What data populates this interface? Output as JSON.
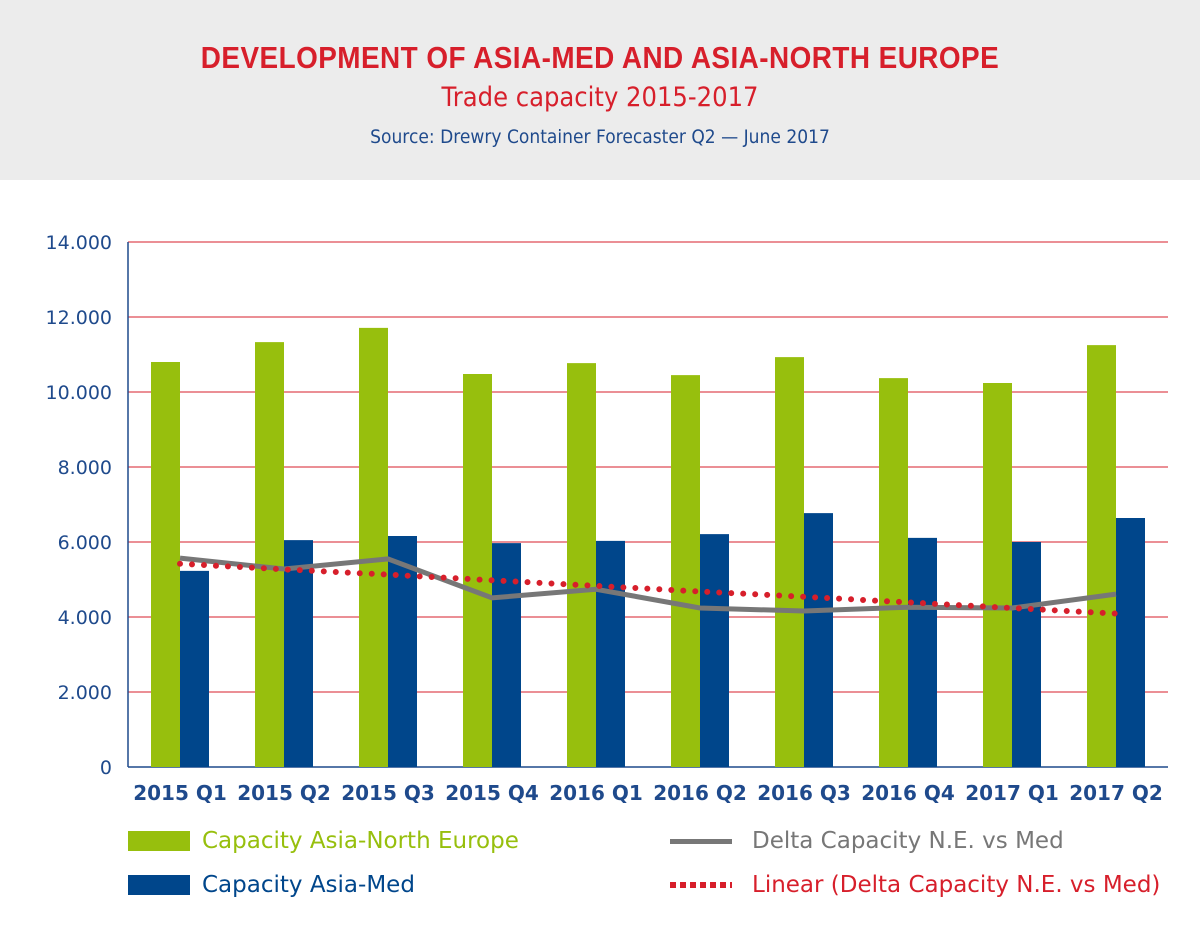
{
  "header": {
    "title": "DEVELOPMENT OF ASIA-MED AND ASIA-NORTH EUROPE",
    "subtitle": "Trade capacity 2015-2017",
    "source": "Source: Drewry Container Forecaster Q2 — June 2017"
  },
  "chart_data": {
    "type": "bar",
    "title": "DEVELOPMENT OF ASIA-MED AND ASIA-NORTH EUROPE",
    "subtitle": "Trade capacity 2015-2017",
    "categories": [
      "2015 Q1",
      "2015 Q2",
      "2015 Q3",
      "2015 Q4",
      "2016 Q1",
      "2016 Q2",
      "2016 Q3",
      "2016 Q4",
      "2017 Q1",
      "2017 Q2"
    ],
    "ylim": [
      0,
      14000
    ],
    "yticks": [
      "0",
      "2.000",
      "4.000",
      "6.000",
      "8.000",
      "10.000",
      "12.000",
      "14.000"
    ],
    "grid": true,
    "legend_position": "bottom",
    "series": [
      {
        "name": "Capacity Asia-North Europe",
        "type": "bar",
        "color": "#97bf0d",
        "values": [
          10800,
          11330,
          11710,
          10480,
          10770,
          10450,
          10930,
          10370,
          10240,
          11250
        ]
      },
      {
        "name": "Capacity Asia-Med",
        "type": "bar",
        "color": "#00468b",
        "values": [
          5230,
          6050,
          6160,
          5970,
          6030,
          6210,
          6770,
          6110,
          6000,
          6640
        ]
      },
      {
        "name": "Delta Capacity N.E. vs Med",
        "type": "line",
        "color": "#777777",
        "values": [
          5570,
          5280,
          5550,
          4510,
          4740,
          4240,
          4160,
          4260,
          4240,
          4610
        ]
      },
      {
        "name": "Linear (Delta Capacity N.E. vs Med)",
        "type": "line",
        "style": "dotted",
        "color": "#d71f2b",
        "values": [
          5420,
          5270,
          5130,
          4980,
          4830,
          4680,
          4540,
          4390,
          4240,
          4090
        ]
      }
    ]
  }
}
